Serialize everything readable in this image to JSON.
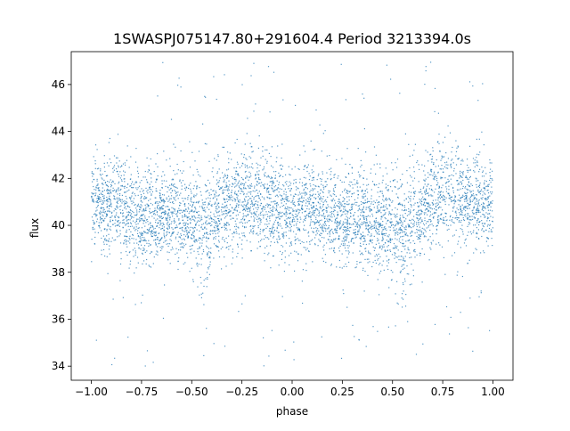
{
  "chart_data": {
    "type": "scatter",
    "title": "1SWASPJ075147.80+291604.4 Period 3213394.0s",
    "xlabel": "phase",
    "ylabel": "flux",
    "xlim": [
      -1.1,
      1.1
    ],
    "ylim": [
      33.4,
      47.4
    ],
    "xticks": [
      -1.0,
      -0.75,
      -0.5,
      -0.25,
      0.0,
      0.25,
      0.5,
      0.75,
      1.0
    ],
    "xtick_labels": [
      "−1.00",
      "−0.75",
      "−0.50",
      "−0.25",
      "0.00",
      "0.25",
      "0.50",
      "0.75",
      "1.00"
    ],
    "yticks": [
      34,
      36,
      38,
      40,
      42,
      44,
      46
    ],
    "ytick_labels": [
      "34",
      "36",
      "38",
      "40",
      "42",
      "44",
      "46"
    ],
    "grid": false,
    "legend": "none",
    "point_color": "#1f77b4",
    "series": [
      {
        "phase_range": [
          -1.0,
          1.0
        ],
        "flux_envelope": {
          "x": [
            -1.0,
            -0.9,
            -0.8,
            -0.75,
            -0.7,
            -0.6,
            -0.5,
            -0.45,
            -0.4,
            -0.3,
            -0.25,
            -0.2,
            -0.1,
            0.0,
            0.1,
            0.2,
            0.25,
            0.3,
            0.4,
            0.5,
            0.55,
            0.6,
            0.7,
            0.75,
            0.8,
            0.9,
            1.0
          ],
          "median": [
            41.0,
            41.0,
            40.5,
            40.3,
            40.2,
            40.5,
            40.0,
            39.8,
            40.3,
            41.0,
            41.2,
            41.0,
            40.8,
            40.6,
            40.8,
            40.3,
            40.1,
            40.5,
            40.2,
            39.9,
            39.8,
            40.3,
            41.2,
            41.3,
            41.3,
            41.0,
            40.8
          ],
          "lower": [
            39.0,
            38.8,
            38.5,
            38.0,
            38.3,
            38.5,
            38.0,
            36.5,
            38.2,
            38.8,
            39.0,
            38.8,
            38.6,
            38.5,
            38.7,
            38.3,
            38.0,
            38.3,
            38.0,
            37.8,
            36.5,
            38.2,
            39.0,
            39.2,
            39.2,
            39.0,
            39.0
          ],
          "upper": [
            43.0,
            43.2,
            43.0,
            42.5,
            42.5,
            42.7,
            42.3,
            42.0,
            42.7,
            43.3,
            43.5,
            43.5,
            43.0,
            42.8,
            43.0,
            42.7,
            42.3,
            42.8,
            42.5,
            42.3,
            42.2,
            42.7,
            43.5,
            43.8,
            43.8,
            43.5,
            43.2
          ]
        },
        "outlier_range": [
          34.0,
          47.0
        ]
      }
    ]
  }
}
